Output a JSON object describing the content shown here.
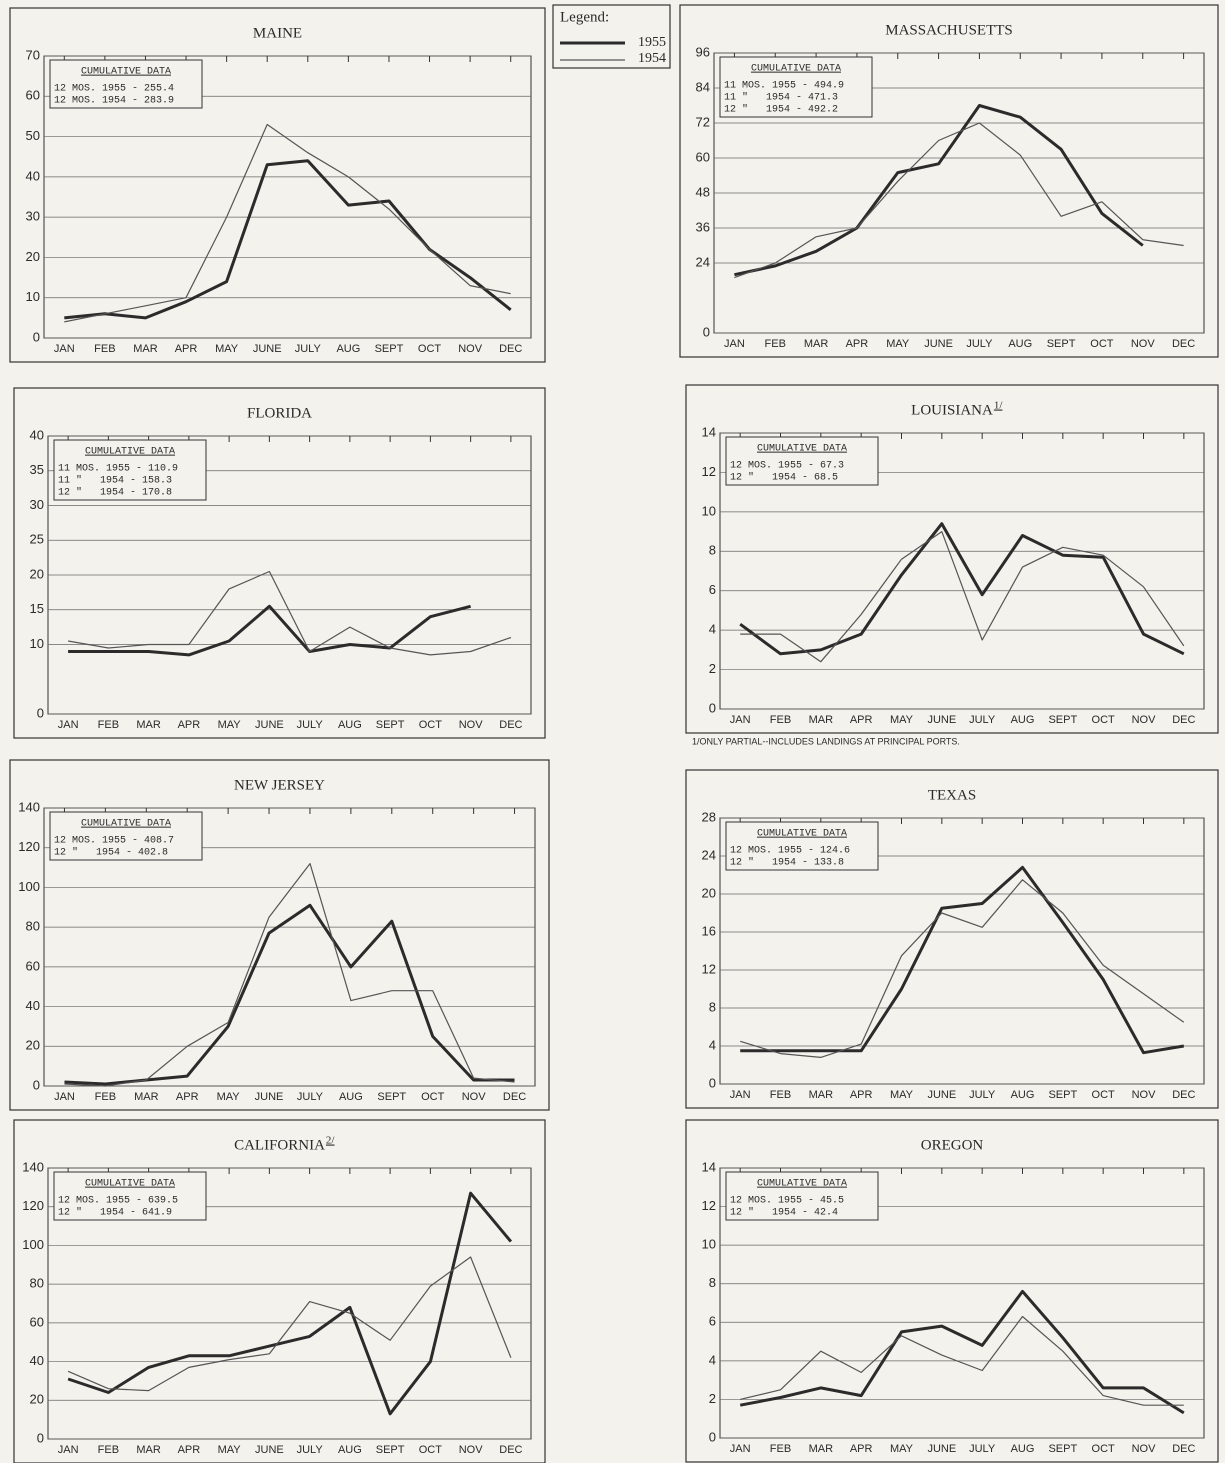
{
  "legend_title": "Legend:",
  "chart_data": [
    {
      "type": "line",
      "title": "MAINE",
      "box_title": "CUMULATIVE DATA",
      "box_lines": [
        "12 MOS. 1955 - 255.4",
        "12 MOS. 1954 - 283.9"
      ],
      "categories": [
        "JAN",
        "FEB",
        "MAR",
        "APR",
        "MAY",
        "JUNE",
        "JULY",
        "AUG",
        "SEPT",
        "OCT",
        "NOV",
        "DEC"
      ],
      "series": [
        {
          "name": "1955",
          "color": "#2b2b2b",
          "values": [
            5,
            6,
            5,
            9,
            14,
            43,
            44,
            33,
            34,
            22,
            15,
            7
          ]
        },
        {
          "name": "1954",
          "color": "#555555",
          "values": [
            4,
            6,
            8,
            10,
            30,
            53,
            46,
            40,
            32,
            22,
            13,
            11
          ]
        }
      ],
      "ylim": [
        0,
        70
      ],
      "yticks": [
        0,
        10,
        20,
        30,
        40,
        50,
        60,
        70
      ],
      "grid": true
    },
    {
      "type": "line",
      "title": "MASSACHUSETTS",
      "box_title": "CUMULATIVE DATA",
      "box_lines": [
        "11 MOS. 1955 - 494.9",
        "11 \"   1954 - 471.3",
        "12 \"   1954 - 492.2"
      ],
      "categories": [
        "JAN",
        "FEB",
        "MAR",
        "APR",
        "MAY",
        "JUNE",
        "JULY",
        "AUG",
        "SEPT",
        "OCT",
        "NOV",
        "DEC"
      ],
      "series": [
        {
          "name": "1955",
          "color": "#2b2b2b",
          "values": [
            20,
            23,
            28,
            36,
            55,
            58,
            78,
            74,
            63,
            41,
            30,
            null
          ]
        },
        {
          "name": "1954",
          "color": "#555555",
          "values": [
            19,
            24,
            33,
            36,
            52,
            66,
            72,
            61,
            40,
            45,
            32,
            30
          ]
        }
      ],
      "ylim": [
        0,
        96
      ],
      "yticks": [
        0,
        24,
        36,
        48,
        60,
        72,
        84,
        96
      ],
      "grid": true
    },
    {
      "type": "line",
      "title": "FLORIDA",
      "box_title": "CUMULATIVE DATA",
      "box_lines": [
        "11 MOS. 1955 - 110.9",
        "11 \"   1954 - 158.3",
        "12 \"   1954 - 170.8"
      ],
      "categories": [
        "JAN",
        "FEB",
        "MAR",
        "APR",
        "MAY",
        "JUNE",
        "JULY",
        "AUG",
        "SEPT",
        "OCT",
        "NOV",
        "DEC"
      ],
      "series": [
        {
          "name": "1955",
          "color": "#2b2b2b",
          "values": [
            9,
            9,
            9,
            8.5,
            10.5,
            15.5,
            9,
            10,
            9.5,
            14,
            15.5,
            null
          ]
        },
        {
          "name": "1954",
          "color": "#555555",
          "values": [
            10.5,
            9.5,
            10,
            10,
            18,
            20.5,
            9,
            12.5,
            9.5,
            8.5,
            9,
            11
          ]
        }
      ],
      "ylim": [
        0,
        40
      ],
      "yticks": [
        0,
        10,
        15,
        20,
        25,
        30,
        35,
        40
      ],
      "grid": true
    },
    {
      "type": "line",
      "title": "LOUISIANA",
      "title_mark": "1/",
      "box_title": "CUMULATIVE DATA",
      "box_lines": [
        "12 MOS. 1955 - 67.3",
        "12 \"   1954 - 68.5"
      ],
      "note": "1/ONLY PARTIAL--INCLUDES LANDINGS AT PRINCIPAL PORTS.",
      "categories": [
        "JAN",
        "FEB",
        "MAR",
        "APR",
        "MAY",
        "JUNE",
        "JULY",
        "AUG",
        "SEPT",
        "OCT",
        "NOV",
        "DEC"
      ],
      "series": [
        {
          "name": "1955",
          "color": "#2b2b2b",
          "values": [
            4.3,
            2.8,
            3,
            3.8,
            6.8,
            9.4,
            5.8,
            8.8,
            7.8,
            7.7,
            3.8,
            2.8
          ]
        },
        {
          "name": "1954",
          "color": "#555555",
          "values": [
            3.8,
            3.8,
            2.4,
            4.8,
            7.6,
            9.0,
            3.5,
            7.2,
            8.2,
            7.8,
            6.2,
            3.2
          ]
        }
      ],
      "ylim": [
        0,
        14
      ],
      "yticks": [
        0,
        2,
        4,
        6,
        8,
        10,
        12,
        14
      ],
      "grid": true
    },
    {
      "type": "line",
      "title": "NEW JERSEY",
      "box_title": "CUMULATIVE DATA",
      "box_lines": [
        "12 MOS. 1955 - 408.7",
        "12 \"   1954 - 402.8"
      ],
      "categories": [
        "JAN",
        "FEB",
        "MAR",
        "APR",
        "MAY",
        "JUNE",
        "JULY",
        "AUG",
        "SEPT",
        "OCT",
        "NOV",
        "DEC"
      ],
      "series": [
        {
          "name": "1955",
          "color": "#2b2b2b",
          "values": [
            2,
            1,
            3,
            5,
            30,
            77,
            91,
            60,
            83,
            25,
            3,
            3
          ]
        },
        {
          "name": "1954",
          "color": "#555555",
          "values": [
            1,
            0,
            3,
            20,
            32,
            85,
            112,
            43,
            48,
            48,
            4,
            2
          ]
        }
      ],
      "ylim": [
        0,
        140
      ],
      "yticks": [
        0,
        20,
        40,
        60,
        80,
        100,
        120,
        140
      ],
      "grid": true
    },
    {
      "type": "line",
      "title": "TEXAS",
      "box_title": "CUMULATIVE DATA",
      "box_lines": [
        "12 MOS. 1955 - 124.6",
        "12 \"   1954 - 133.8"
      ],
      "categories": [
        "JAN",
        "FEB",
        "MAR",
        "APR",
        "MAY",
        "JUNE",
        "JULY",
        "AUG",
        "SEPT",
        "OCT",
        "NOV",
        "DEC"
      ],
      "series": [
        {
          "name": "1955",
          "color": "#2b2b2b",
          "values": [
            3.5,
            3.5,
            3.5,
            3.5,
            10,
            18.5,
            19,
            22.8,
            17,
            11,
            3.3,
            4
          ]
        },
        {
          "name": "1954",
          "color": "#555555",
          "values": [
            4.5,
            3.2,
            2.8,
            4.2,
            13.5,
            18,
            16.5,
            21.5,
            18,
            12.5,
            9.5,
            6.5
          ]
        }
      ],
      "ylim": [
        0,
        28
      ],
      "yticks": [
        0,
        4,
        8,
        12,
        16,
        20,
        24,
        28
      ],
      "grid": true
    },
    {
      "type": "line",
      "title": "CALIFORNIA",
      "title_mark": "2/",
      "box_title": "CUMULATIVE DATA",
      "box_lines": [
        "12 MOS. 1955 - 639.5",
        "12 \"   1954 - 641.9"
      ],
      "categories": [
        "JAN",
        "FEB",
        "MAR",
        "APR",
        "MAY",
        "JUNE",
        "JULY",
        "AUG",
        "SEPT",
        "OCT",
        "NOV",
        "DEC"
      ],
      "series": [
        {
          "name": "1955",
          "color": "#2b2b2b",
          "values": [
            31,
            24,
            37,
            43,
            43,
            48,
            53,
            68,
            13,
            40,
            127,
            102
          ]
        },
        {
          "name": "1954",
          "color": "#555555",
          "values": [
            35,
            26,
            25,
            37,
            41,
            44,
            71,
            65,
            51,
            79,
            94,
            42
          ]
        }
      ],
      "ylim": [
        0,
        140
      ],
      "yticks": [
        0,
        20,
        40,
        60,
        80,
        100,
        120,
        140
      ],
      "grid": true
    },
    {
      "type": "line",
      "title": "OREGON",
      "box_title": "CUMULATIVE DATA",
      "box_lines": [
        "12 MOS. 1955 - 45.5",
        "12 \"   1954 - 42.4"
      ],
      "categories": [
        "JAN",
        "FEB",
        "MAR",
        "APR",
        "MAY",
        "JUNE",
        "JULY",
        "AUG",
        "SEPT",
        "OCT",
        "NOV",
        "DEC"
      ],
      "series": [
        {
          "name": "1955",
          "color": "#2b2b2b",
          "values": [
            1.7,
            2.1,
            2.6,
            2.2,
            5.5,
            5.8,
            4.8,
            7.6,
            5.2,
            2.6,
            2.6,
            1.3
          ]
        },
        {
          "name": "1954",
          "color": "#555555",
          "values": [
            2.0,
            2.5,
            4.5,
            3.4,
            5.3,
            4.3,
            3.5,
            6.3,
            4.5,
            2.2,
            1.7,
            1.7
          ]
        }
      ],
      "ylim": [
        0,
        14
      ],
      "yticks": [
        0,
        2,
        4,
        6,
        8,
        10,
        12,
        14
      ],
      "grid": true
    }
  ]
}
